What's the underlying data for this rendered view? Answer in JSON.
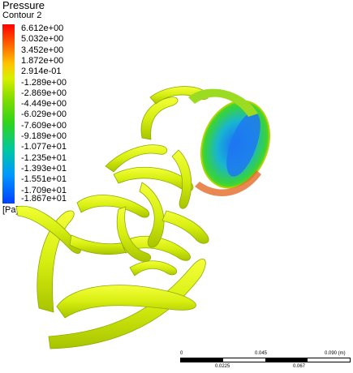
{
  "legend": {
    "title": "Pressure",
    "subtitle": "Contour 2",
    "unit": "[Pa]",
    "labels": [
      "6.612e+00",
      "5.032e+00",
      "3.452e+00",
      "1.872e+00",
      "2.914e-01",
      "-1.289e+00",
      "-2.869e+00",
      "-4.449e+00",
      "-6.029e+00",
      "-7.609e+00",
      "-9.189e+00",
      "-1.077e+01",
      "-1.235e+01",
      "-1.393e+01",
      "-1.551e+01",
      "-1.709e+01",
      "-1.867e+01"
    ],
    "colors": [
      "#ff0000",
      "#ff6a00",
      "#ffc400",
      "#d8ef00",
      "#7fdc00",
      "#2fd41a",
      "#00c8a0",
      "#0098ff",
      "#0040ff"
    ]
  },
  "scale": {
    "top_ticks": [
      "0",
      "0.045",
      "0.090 (m)"
    ],
    "bottom_ticks": [
      "0.0225",
      "0.067"
    ]
  }
}
